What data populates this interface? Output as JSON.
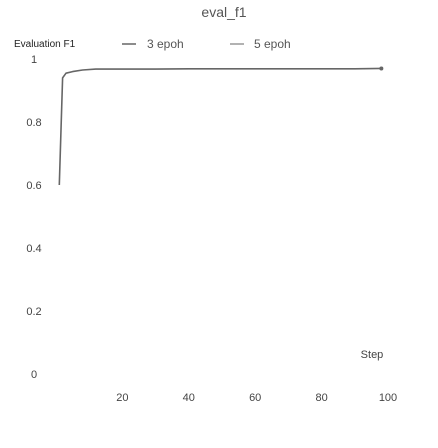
{
  "chart_data": {
    "type": "line",
    "title": "eval_f1",
    "ylabel": "Evaluation F1",
    "xlabel": "Step",
    "legend_placement": "top",
    "xlim": [
      0,
      100
    ],
    "ylim": [
      0,
      1
    ],
    "x_ticks": [
      20,
      40,
      60,
      80,
      100
    ],
    "y_ticks": [
      0,
      0.2,
      0.4,
      0.6,
      0.8,
      1
    ],
    "y_tick_labels": [
      "0",
      "0.2",
      "0.4",
      "0.6",
      "0.8",
      "1"
    ],
    "series": [
      {
        "name": "3 epoh",
        "color": "#666666",
        "x": [
          1,
          2,
          3,
          5,
          8,
          12,
          20,
          30,
          40,
          50,
          60,
          70,
          80,
          90,
          98
        ],
        "y": [
          0.6,
          0.94,
          0.955,
          0.96,
          0.965,
          0.968,
          0.968,
          0.968,
          0.969,
          0.969,
          0.969,
          0.969,
          0.969,
          0.969,
          0.97
        ]
      },
      {
        "name": "5 epoh",
        "color": "#999999",
        "x": [],
        "y": []
      }
    ]
  }
}
